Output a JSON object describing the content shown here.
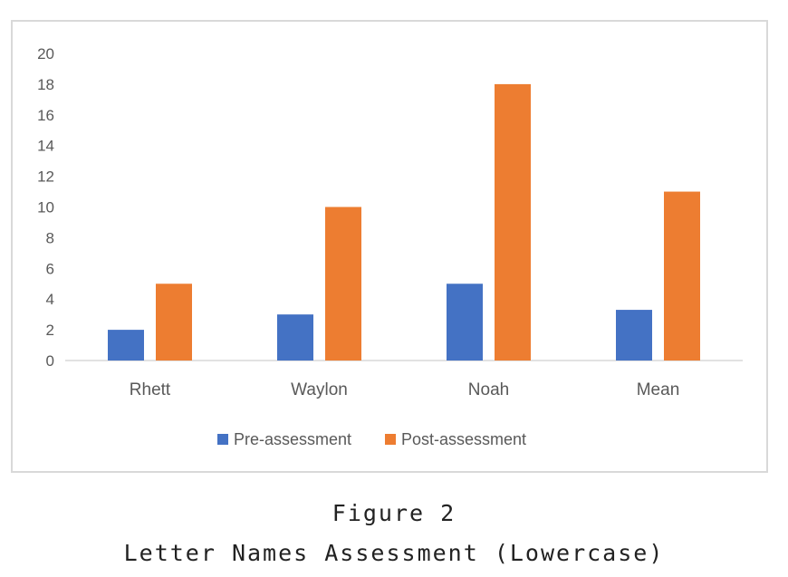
{
  "figure_label": "Figure 2",
  "figure_title": "Letter Names Assessment (Lowercase)",
  "colors": {
    "pre": "#4472c4",
    "post": "#ed7d31",
    "axis": "#d9d9d9",
    "text": "#595959"
  },
  "chart_data": {
    "type": "bar",
    "categories": [
      "Rhett",
      "Waylon",
      "Noah",
      "Mean"
    ],
    "series": [
      {
        "name": "Pre-assessment",
        "values": [
          2,
          3,
          5,
          3.3
        ]
      },
      {
        "name": "Post-assessment",
        "values": [
          5,
          10,
          18,
          11
        ]
      }
    ],
    "ylim": [
      0,
      20
    ],
    "yticks": [
      "0",
      "2",
      "4",
      "6",
      "8",
      "10",
      "12",
      "14",
      "16",
      "18",
      "20"
    ],
    "grid": false,
    "legend_position": "bottom"
  }
}
